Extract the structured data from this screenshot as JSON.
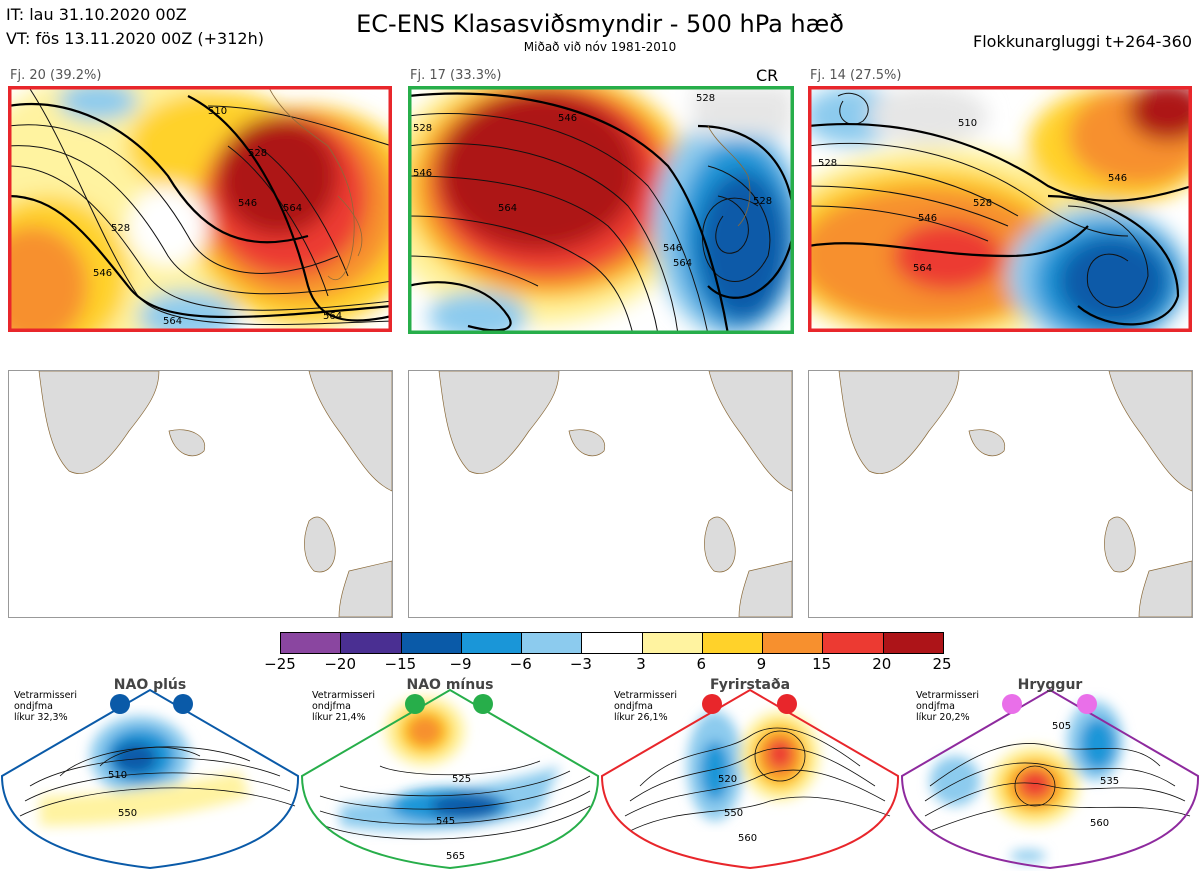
{
  "header": {
    "init_line": "IT: lau 31.10.2020 00Z",
    "valid_line": "VT: fös 13.11.2020 00Z  (+312h)",
    "title": "EC-ENS Klasasviðsmyndir - 500 hPa hæð",
    "subtitle": "Miðað við nóv 1981-2010",
    "window": "Flokkunargluggi t+264-360"
  },
  "clusters": [
    {
      "label": "Fj. 20 (39.2%)",
      "tag": "",
      "border_color": "#e8262b",
      "contours": [
        "510",
        "528",
        "546",
        "564",
        "528",
        "546",
        "564",
        "564"
      ]
    },
    {
      "label": "Fj. 17 (33.3%)",
      "tag": "CR",
      "border_color": "#27ae4a",
      "contours": [
        "528",
        "546",
        "546",
        "564",
        "546",
        "564",
        "528",
        "528"
      ]
    },
    {
      "label": "Fj. 14 (27.5%)",
      "tag": "",
      "border_color": "#e8262b",
      "contours": [
        "510",
        "528",
        "546",
        "564",
        "546",
        "528"
      ]
    }
  ],
  "colorbar": {
    "colors": [
      "#8a46a0",
      "#4a2f92",
      "#0a5aa8",
      "#1a96d8",
      "#8ccbee",
      "#ffffff",
      "#fff3a0",
      "#ffd22a",
      "#f7902e",
      "#ec3a32",
      "#ad1418"
    ],
    "ticks": [
      "−25",
      "−20",
      "−15",
      "−9",
      "−6",
      "−3",
      "3",
      "6",
      "9",
      "15",
      "20",
      "25"
    ]
  },
  "regimes": [
    {
      "name": "NAO plús",
      "info": [
        "Vetrarmisseri",
        "ondjfma",
        "líkur 32,3%"
      ],
      "color": "#0a5aa8",
      "contours": [
        "510",
        "550"
      ]
    },
    {
      "name": "NAO mínus",
      "info": [
        "Vetrarmisseri",
        "ondjfma",
        "líkur 21,4%"
      ],
      "color": "#27ae4a",
      "contours": [
        "525",
        "545",
        "565"
      ]
    },
    {
      "name": "Fyrirstaða",
      "info": [
        "Vetrarmisseri",
        "ondjfma",
        "líkur 26,1%"
      ],
      "color": "#e8262b",
      "contours": [
        "520",
        "550",
        "560"
      ]
    },
    {
      "name": "Hryggur",
      "info": [
        "Vetrarmisseri",
        "ondjfma",
        "líkur 20,2%"
      ],
      "color": "#8e2a9e",
      "contours": [
        "505",
        "535",
        "560"
      ]
    }
  ]
}
